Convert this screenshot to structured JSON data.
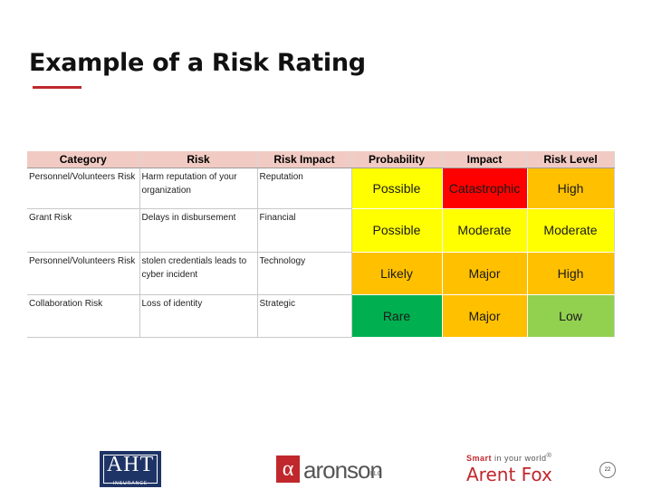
{
  "slide": {
    "title": "Example of a Risk Rating",
    "page_number": "22"
  },
  "table": {
    "headers": [
      "Category",
      "Risk",
      "Risk Impact",
      "Probability",
      "Impact",
      "Risk Level"
    ],
    "rows": [
      {
        "category": "Personnel/Volunteers Risk",
        "risk": "Harm reputation of your organization",
        "risk_impact": "Reputation",
        "probability": {
          "label": "Possible",
          "color": "#ffff00"
        },
        "impact": {
          "label": "Catastrophic",
          "color": "#ff0000"
        },
        "risk_level": {
          "label": "High",
          "color": "#ffc000"
        }
      },
      {
        "category": "Grant Risk",
        "risk": "Delays in disbursement",
        "risk_impact": "Financial",
        "probability": {
          "label": "Possible",
          "color": "#ffff00"
        },
        "impact": {
          "label": "Moderate",
          "color": "#ffff00"
        },
        "risk_level": {
          "label": "Moderate",
          "color": "#ffff00"
        }
      },
      {
        "category": "Personnel/Volunteers Risk",
        "risk": "stolen credentials leads to cyber incident",
        "risk_impact": "Technology",
        "probability": {
          "label": "Likely",
          "color": "#ffc000"
        },
        "impact": {
          "label": "Major",
          "color": "#ffc000"
        },
        "risk_level": {
          "label": "High",
          "color": "#ffc000"
        }
      },
      {
        "category": "Collaboration Risk",
        "risk": "Loss of identity",
        "risk_impact": "Strategic",
        "probability": {
          "label": "Rare",
          "color": "#00b050"
        },
        "impact": {
          "label": "Major",
          "color": "#ffc000"
        },
        "risk_level": {
          "label": "Low",
          "color": "#92d050"
        }
      }
    ]
  },
  "logos": {
    "aht": {
      "text": "AHT",
      "sub": "INSURANCE"
    },
    "aronson": {
      "symbol": "α",
      "text": "aronson",
      "suffix": "LLC"
    },
    "arent_fox": {
      "tagline_prefix": "Smart",
      "tagline_rest": " in your world",
      "mark": "®",
      "name": "Arent Fox"
    }
  },
  "colors": {
    "accent": "#c0282d",
    "header_fill": "#f1cbc3"
  }
}
